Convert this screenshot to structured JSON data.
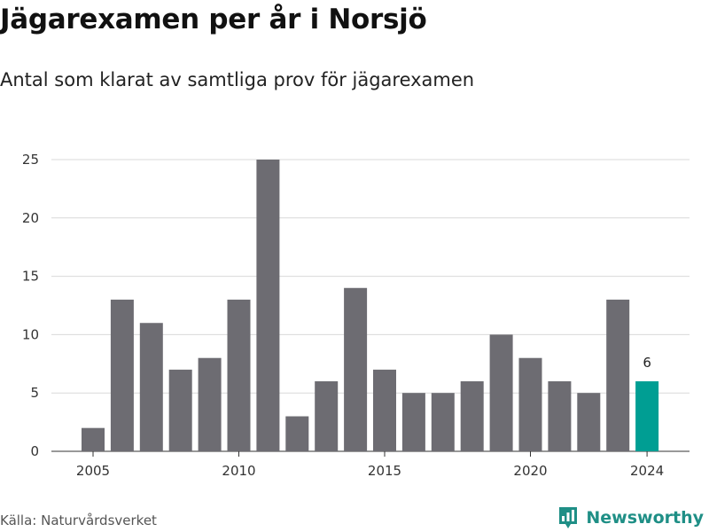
{
  "header": {
    "title": "Jägarexamen per år i Norsjö",
    "subtitle": "Antal som klarat av samtliga prov för jägarexamen"
  },
  "footer": {
    "source": "Källa: Naturvårdsverket",
    "brand": "Newsworthy",
    "brand_icon": "newsworthy-logo-icon"
  },
  "colors": {
    "bar": "#6d6c72",
    "highlight": "#009e93",
    "grid": "#d9d9d9",
    "brand": "#1f8f86"
  },
  "chart_data": {
    "type": "bar",
    "title": "Jägarexamen per år i Norsjö",
    "subtitle": "Antal som klarat av samtliga prov för jägarexamen",
    "categories": [
      2005,
      2006,
      2007,
      2008,
      2009,
      2010,
      2011,
      2012,
      2013,
      2014,
      2015,
      2016,
      2017,
      2018,
      2019,
      2020,
      2021,
      2022,
      2023,
      2024
    ],
    "values": [
      2,
      13,
      11,
      7,
      8,
      13,
      25,
      3,
      6,
      14,
      7,
      5,
      5,
      6,
      10,
      8,
      6,
      5,
      13,
      6
    ],
    "highlight_index": 19,
    "highlight_label": "6",
    "x_ticks": [
      2005,
      2010,
      2015,
      2020,
      2024
    ],
    "y_ticks": [
      0,
      5,
      10,
      15,
      20,
      25
    ],
    "ylim": [
      0,
      25
    ],
    "xlabel": "",
    "ylabel": "",
    "grid": true,
    "legend": false
  }
}
